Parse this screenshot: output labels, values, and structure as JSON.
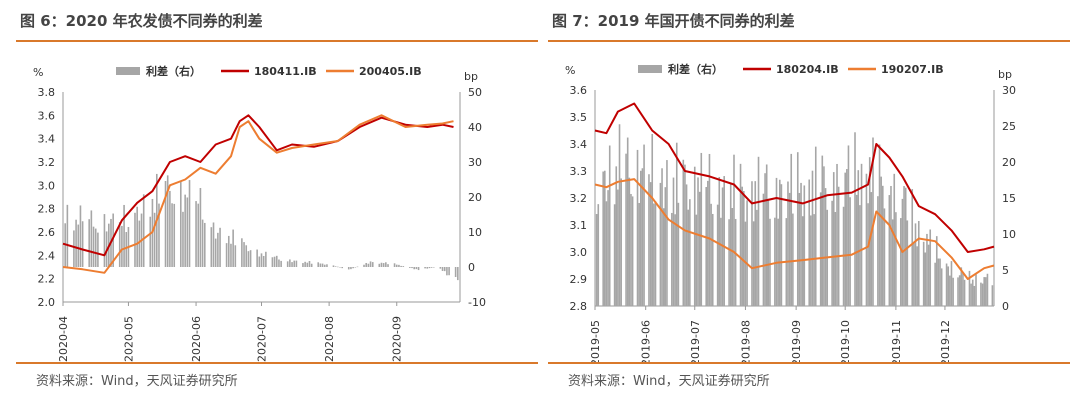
{
  "panels": [
    {
      "title": "图 6：2020 年农发债不同券的利差",
      "source": "资料来源：Wind，天风证券研究所"
    },
    {
      "title": "图 7：2019 年国开债不同券的利差",
      "source": "资料来源：Wind，天风证券研究所"
    }
  ],
  "colors": {
    "bar": "#a6a6a6",
    "series_a": "#c00000",
    "series_b": "#ed7d31",
    "accent": "#d9792b"
  },
  "chart_data": [
    {
      "type": "combo-bar-line",
      "left_unit": "%",
      "right_unit": "bp",
      "ylim_left": [
        2.0,
        3.8
      ],
      "yticks_left": [
        "2.0",
        "2.2",
        "2.4",
        "2.6",
        "2.8",
        "3.0",
        "3.2",
        "3.4",
        "3.6",
        "3.8"
      ],
      "ylim_right": [
        -10,
        50
      ],
      "yticks_right": [
        "-10",
        "0",
        "10",
        "20",
        "30",
        "40",
        "50"
      ],
      "x_start": "2020-04-01",
      "x_end": "2020-09-30",
      "xticks": [
        "2020-04",
        "2020-05",
        "2020-06",
        "2020-07",
        "2020-08",
        "2020-09"
      ],
      "legend": [
        "利差（右）",
        "180411.IB",
        "200405.IB"
      ],
      "series": [
        {
          "name": "180411.IB",
          "axis": "left",
          "x": [
            "2020-04-01",
            "2020-04-10",
            "2020-04-20",
            "2020-04-28",
            "2020-05-05",
            "2020-05-12",
            "2020-05-20",
            "2020-05-27",
            "2020-06-03",
            "2020-06-10",
            "2020-06-17",
            "2020-06-21",
            "2020-06-25",
            "2020-06-30",
            "2020-07-08",
            "2020-07-15",
            "2020-07-25",
            "2020-08-05",
            "2020-08-15",
            "2020-08-25",
            "2020-09-05",
            "2020-09-15",
            "2020-09-22",
            "2020-09-27"
          ],
          "values": [
            2.5,
            2.45,
            2.4,
            2.7,
            2.85,
            2.95,
            3.2,
            3.25,
            3.2,
            3.35,
            3.4,
            3.55,
            3.6,
            3.5,
            3.3,
            3.35,
            3.33,
            3.38,
            3.5,
            3.58,
            3.52,
            3.5,
            3.52,
            3.5
          ]
        },
        {
          "name": "200405.IB",
          "axis": "left",
          "x": [
            "2020-04-01",
            "2020-04-10",
            "2020-04-20",
            "2020-04-28",
            "2020-05-05",
            "2020-05-12",
            "2020-05-20",
            "2020-05-27",
            "2020-06-03",
            "2020-06-10",
            "2020-06-17",
            "2020-06-21",
            "2020-06-25",
            "2020-06-30",
            "2020-07-08",
            "2020-07-15",
            "2020-07-25",
            "2020-08-05",
            "2020-08-15",
            "2020-08-25",
            "2020-09-05",
            "2020-09-15",
            "2020-09-22",
            "2020-09-27"
          ],
          "values": [
            2.3,
            2.28,
            2.25,
            2.45,
            2.5,
            2.6,
            3.0,
            3.05,
            3.15,
            3.1,
            3.25,
            3.5,
            3.55,
            3.4,
            3.28,
            3.32,
            3.35,
            3.38,
            3.52,
            3.6,
            3.5,
            3.52,
            3.53,
            3.55
          ]
        }
      ],
      "spread": {
        "name": "利差（右）",
        "axis": "right",
        "x": [
          "2020-04-01",
          "2020-04-15",
          "2020-05-01",
          "2020-05-10",
          "2020-05-20",
          "2020-06-01",
          "2020-06-10",
          "2020-06-20",
          "2020-07-01",
          "2020-07-10",
          "2020-07-20",
          "2020-08-01",
          "2020-08-10",
          "2020-08-20",
          "2020-09-01",
          "2020-09-10",
          "2020-09-20",
          "2020-09-27"
        ],
        "values": [
          20,
          17,
          18,
          25,
          30,
          26,
          14,
          10,
          5,
          3,
          2,
          1,
          -1,
          2,
          1,
          -1,
          0,
          -5
        ]
      }
    },
    {
      "type": "combo-bar-line",
      "left_unit": "%",
      "right_unit": "bp",
      "ylim_left": [
        2.8,
        3.6
      ],
      "yticks_left": [
        "2.8",
        "2.9",
        "3.0",
        "3.1",
        "3.2",
        "3.3",
        "3.4",
        "3.5",
        "3.6"
      ],
      "ylim_right": [
        0,
        30
      ],
      "yticks_right": [
        "0",
        "5",
        "10",
        "15",
        "20",
        "25",
        "30"
      ],
      "x_start": "2019-05-01",
      "x_end": "2019-12-31",
      "xticks": [
        "2019-05",
        "2019-06",
        "2019-07",
        "2019-08",
        "2019-09",
        "2019-10",
        "2019-11",
        "2019-12"
      ],
      "legend": [
        "利差（右）",
        "180204.IB",
        "190207.IB"
      ],
      "series": [
        {
          "name": "180204.IB",
          "axis": "left",
          "x": [
            "2019-05-01",
            "2019-05-08",
            "2019-05-15",
            "2019-05-25",
            "2019-06-05",
            "2019-06-15",
            "2019-06-25",
            "2019-07-10",
            "2019-07-25",
            "2019-08-05",
            "2019-08-20",
            "2019-09-05",
            "2019-09-20",
            "2019-10-05",
            "2019-10-15",
            "2019-10-20",
            "2019-10-28",
            "2019-11-05",
            "2019-11-15",
            "2019-11-25",
            "2019-12-05",
            "2019-12-15",
            "2019-12-25",
            "2019-12-31"
          ],
          "values": [
            3.45,
            3.44,
            3.52,
            3.55,
            3.45,
            3.4,
            3.3,
            3.28,
            3.25,
            3.18,
            3.2,
            3.18,
            3.21,
            3.22,
            3.25,
            3.4,
            3.35,
            3.28,
            3.17,
            3.14,
            3.08,
            3.0,
            3.01,
            3.02
          ]
        },
        {
          "name": "190207.IB",
          "axis": "left",
          "x": [
            "2019-05-01",
            "2019-05-08",
            "2019-05-15",
            "2019-05-25",
            "2019-06-05",
            "2019-06-15",
            "2019-06-25",
            "2019-07-10",
            "2019-07-25",
            "2019-08-05",
            "2019-08-20",
            "2019-09-05",
            "2019-09-20",
            "2019-10-05",
            "2019-10-15",
            "2019-10-20",
            "2019-10-28",
            "2019-11-05",
            "2019-11-15",
            "2019-11-25",
            "2019-12-05",
            "2019-12-15",
            "2019-12-25",
            "2019-12-31"
          ],
          "values": [
            3.25,
            3.24,
            3.26,
            3.27,
            3.2,
            3.12,
            3.08,
            3.05,
            3.0,
            2.94,
            2.96,
            2.97,
            2.98,
            2.99,
            3.02,
            3.15,
            3.1,
            3.0,
            3.05,
            3.04,
            2.98,
            2.9,
            2.94,
            2.95
          ]
        }
      ],
      "spread": {
        "name": "利差（右）",
        "axis": "right",
        "x": [
          "2019-05-01",
          "2019-05-15",
          "2019-06-01",
          "2019-06-15",
          "2019-07-01",
          "2019-07-15",
          "2019-08-01",
          "2019-08-15",
          "2019-09-01",
          "2019-09-15",
          "2019-10-01",
          "2019-10-15",
          "2019-10-25",
          "2019-11-05",
          "2019-11-15",
          "2019-12-01",
          "2019-12-15",
          "2019-12-31"
        ],
        "values": [
          22,
          26,
          25,
          23,
          23,
          22,
          21,
          22,
          22,
          23,
          24,
          25,
          23,
          20,
          14,
          8,
          5,
          5
        ]
      }
    }
  ]
}
